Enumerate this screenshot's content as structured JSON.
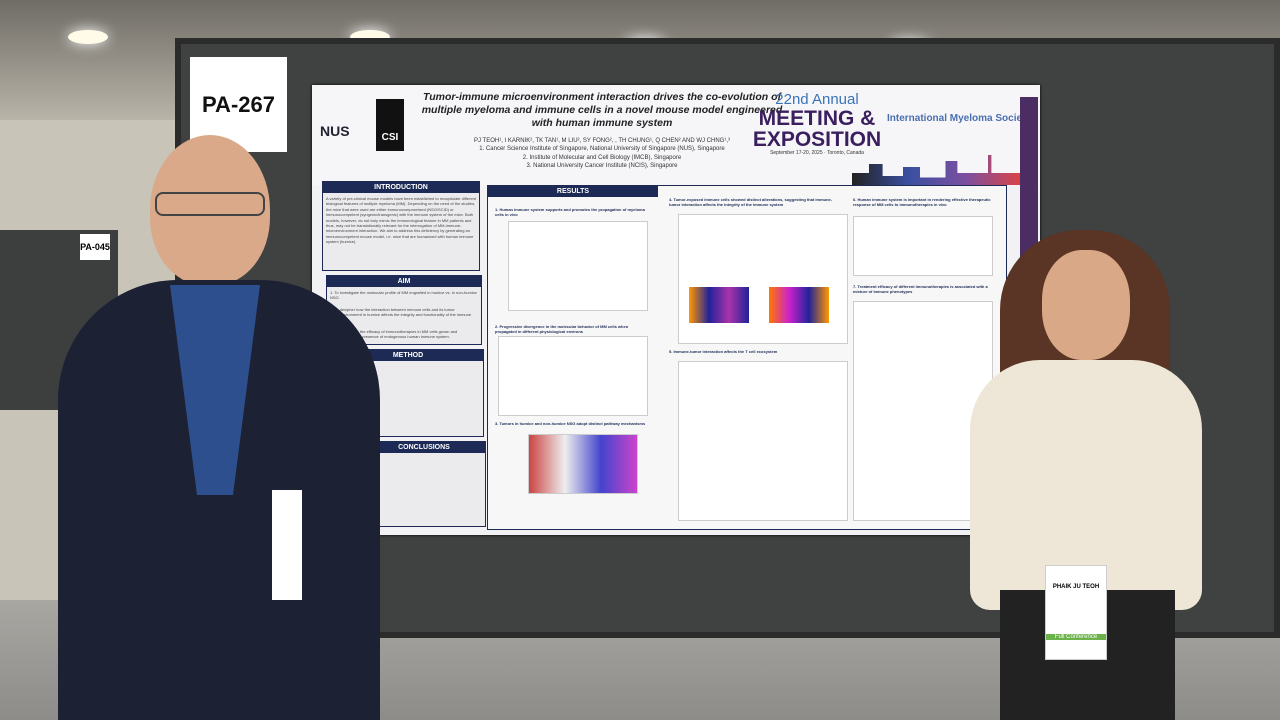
{
  "signs": {
    "main": "PA-267",
    "neighbor": "PA-045"
  },
  "poster": {
    "title": "Tumor-immune microenvironment interaction drives the co-evolution of multiple myeloma and immune cells in a novel mouse model engineered with human immune system",
    "authors": "PJ TEOH¹, I KARNIK², TK TAN¹, M LIU², SY FONG², , TH CHUNG¹, Q CHEN² AND WJ CHNG¹,³",
    "affiliations": [
      "1. Cancer Science Institute of Singapore, National University of Singapore (NUS), Singapore",
      "2. Institute of Molecular and Cell Biology (IMCB), Singapore",
      "3. National University Cancer Institute (NCIS), Singapore"
    ],
    "logos": [
      "NUS",
      "CSI"
    ],
    "conference": {
      "line1": "22nd Annual",
      "line2": "MEETING &",
      "line3": "EXPOSITION",
      "dates": "September 17-20, 2025 · Toronto, Canada",
      "society": "International Myeloma Society"
    },
    "sections": {
      "introduction": {
        "heading": "INTRODUCTION",
        "text": "A variety of pre-clinical mouse models have been established to recapitulate different biological features of multiple myeloma (MM). Depending on the need of the studies, the mice that were used are either immunocompromised (NSG/SCID) or immunocompetent (syngenic/transgenic) with the immune system of the mice. Both models, however, do not truly mimic the immunological feature in MM patients and thus, may not be translationally relevant for the interrogation of MM-immune-microenvironment interaction. We aim to address this deficiency by generating an immunocompetent mouse model, i.e. mice that are humanized with human immune system (humice)."
      },
      "aim": {
        "heading": "AIM",
        "items": [
          "1. To investigate the molecular profile of MM engrafted in humice vs. in non-humice NSG.",
          "2. To decipher how the interaction between immune cells and its tumor microenvironment in humice affects the integrity and functionality of the immune system.",
          "3. To investigate the efficacy of immunotherapies in MM cells grown and propagated in the presence of endogenous human immune system."
        ]
      },
      "method": {
        "heading": "METHOD"
      },
      "conclusions": {
        "heading": "CONCLUSIONS"
      },
      "results": {
        "heading": "RESULTS",
        "subs": [
          "1. Human immune system supports and promotes the propagation of myeloma cells in vivo",
          "2. Progressive divergence in the molecular behavior of MM cells when propagated in different physiological environs",
          "3. Tumors in humice and non-humice NSG adopt distinct pathway mechanisms",
          "4. Tumor-exposed immune cells showed distinct alterations, suggesting that immune-tumor interaction affects the integrity of the immune system",
          "5. Immune-tumor interaction affects the T cell ecosystem",
          "6. Human immune system is important in rendering effective therapeutic response of MM cells to immunotherapies in vivo",
          "7. Treatment efficacy of different immunotherapies is associated with a mixture of immune phenotypes"
        ]
      }
    }
  },
  "badge": {
    "name": "PHAIK JU TEOH",
    "type": "Full Conference"
  },
  "colors": {
    "board": "#3f4240",
    "poster": "#f2f2f4",
    "section_header": "#1d2a55",
    "conference_purple": "#3a1e5e"
  }
}
